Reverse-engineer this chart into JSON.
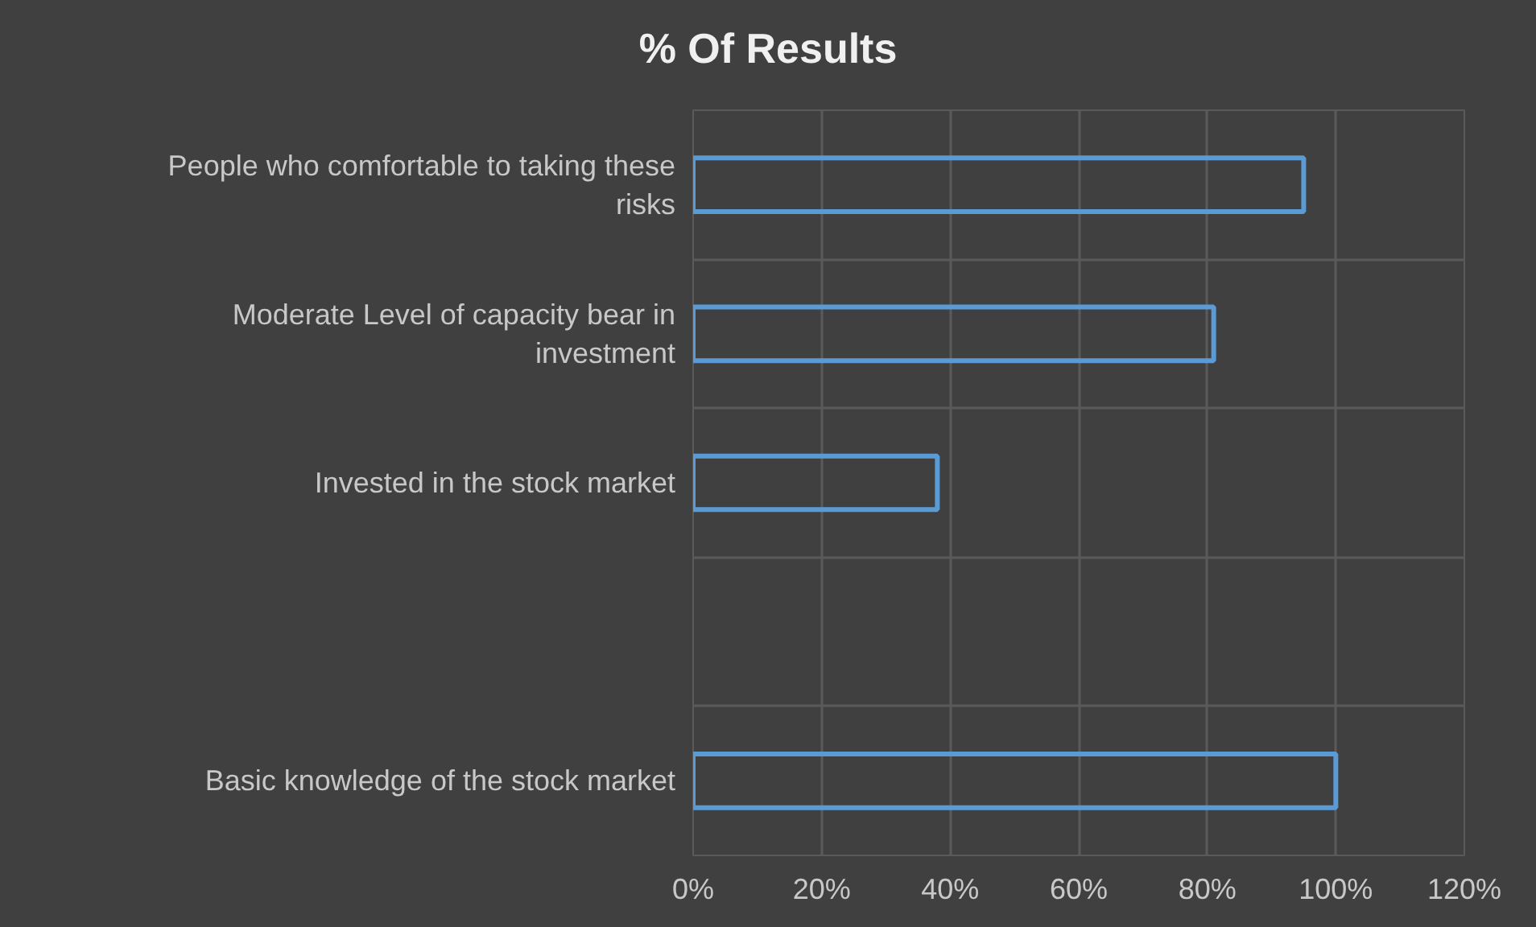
{
  "chart_data": {
    "type": "bar",
    "orientation": "horizontal",
    "title": "% Of Results",
    "categories": [
      "People who comfortable to taking these risks",
      "Moderate Level of capacity bear in investment",
      "Invested in the stock market",
      null,
      "Basic knowledge of the stock market"
    ],
    "values": [
      95,
      81,
      38,
      null,
      100
    ],
    "color": "#5b9bd5",
    "xlim": [
      0,
      120
    ],
    "xticks": [
      {
        "value": 0,
        "label": "0%"
      },
      {
        "value": 20,
        "label": "20%"
      },
      {
        "value": 40,
        "label": "40%"
      },
      {
        "value": 60,
        "label": "60%"
      },
      {
        "value": 80,
        "label": "80%"
      },
      {
        "value": 100,
        "label": "100%"
      },
      {
        "value": 120,
        "label": "120%"
      }
    ],
    "grid": true
  }
}
